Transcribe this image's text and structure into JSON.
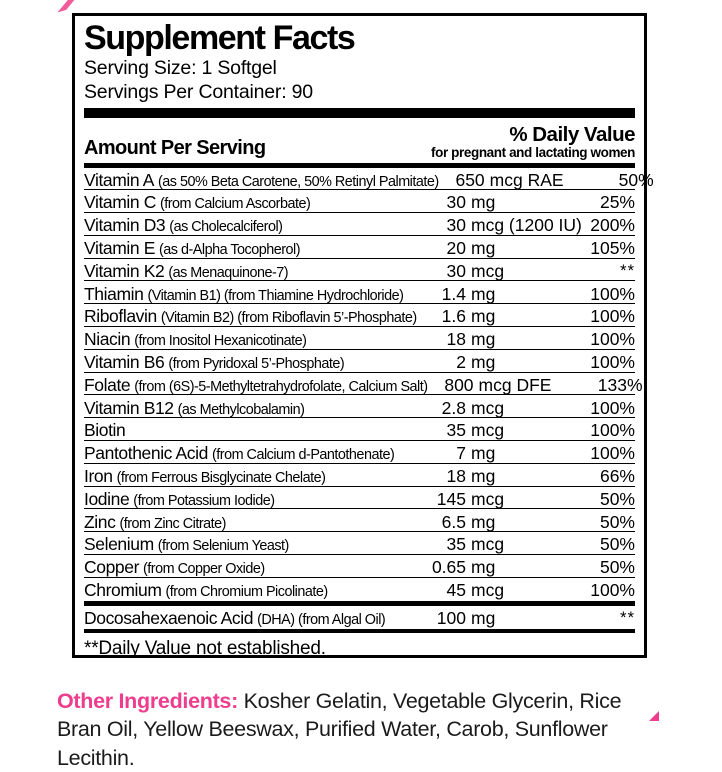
{
  "label": {
    "title": "Supplement Facts",
    "serving_size": "Serving Size: 1 Softgel",
    "servings_per_container": "Servings Per Container: 90",
    "amount_header": "Amount Per Serving",
    "dv_header": "% Daily Value",
    "dv_subheader": "for pregnant and lactating women",
    "rows": [
      {
        "name": "Vitamin A",
        "detail": "(as 50% Beta Carotene, 50% Retinyl Palmitate)",
        "num": "650",
        "unit": "mcg RAE",
        "dv": "50%"
      },
      {
        "name": "Vitamin C",
        "detail": "(from Calcium Ascorbate)",
        "num": "30",
        "unit": "mg",
        "dv": "25%"
      },
      {
        "name": "Vitamin D3",
        "detail": "(as Cholecalciferol)",
        "num": "30",
        "unit": "mcg (1200 IU)",
        "dv": "200%"
      },
      {
        "name": "Vitamin E",
        "detail": "(as d-Alpha Tocopherol)",
        "num": "20",
        "unit": "mg",
        "dv": "105%"
      },
      {
        "name": "Vitamin K2",
        "detail": "(as Menaquinone-7)",
        "num": "30",
        "unit": "mcg",
        "dv": "**"
      },
      {
        "name": "Thiamin",
        "detail": "(Vitamin B1) (from Thiamine Hydrochloride)",
        "num": "1.4",
        "unit": "mg",
        "dv": "100%"
      },
      {
        "name": "Riboflavin",
        "detail": "(Vitamin B2) (from Riboflavin 5’-Phosphate)",
        "num": "1.6",
        "unit": "mg",
        "dv": "100%"
      },
      {
        "name": "Niacin",
        "detail": "(from Inositol Hexanicotinate)",
        "num": "18",
        "unit": "mg",
        "dv": "100%"
      },
      {
        "name": "Vitamin B6",
        "detail": "(from Pyridoxal 5’-Phosphate)",
        "num": "2",
        "unit": "mg",
        "dv": "100%"
      },
      {
        "name": "Folate",
        "detail": "(from (6S)-5-Methyltetrahydrofolate, Calcium Salt)",
        "num": "800",
        "unit": "mcg DFE",
        "dv": "133%"
      },
      {
        "name": "Vitamin B12",
        "detail": "(as Methylcobalamin)",
        "num": "2.8",
        "unit": "mcg",
        "dv": "100%"
      },
      {
        "name": "Biotin",
        "detail": "",
        "num": "35",
        "unit": "mcg",
        "dv": "100%"
      },
      {
        "name": "Pantothenic Acid",
        "detail": "(from Calcium d-Pantothenate)",
        "num": "7",
        "unit": "mg",
        "dv": "100%"
      },
      {
        "name": "Iron",
        "detail": "(from Ferrous Bisglycinate Chelate)",
        "num": "18",
        "unit": "mg",
        "dv": "66%"
      },
      {
        "name": "Iodine",
        "detail": "(from Potassium Iodide)",
        "num": "145",
        "unit": "mcg",
        "dv": "50%"
      },
      {
        "name": "Zinc",
        "detail": "(from Zinc Citrate)",
        "num": "6.5",
        "unit": "mg",
        "dv": "50%"
      },
      {
        "name": "Selenium",
        "detail": "(from Selenium Yeast)",
        "num": "35",
        "unit": "mcg",
        "dv": "50%"
      },
      {
        "name": "Copper",
        "detail": "(from Copper Oxide)",
        "num": "0.65",
        "unit": "mg",
        "dv": "50%"
      },
      {
        "name": "Chromium",
        "detail": "(from Chromium Picolinate)",
        "num": "45",
        "unit": "mcg",
        "dv": "100%"
      }
    ],
    "dha": {
      "name": "Docosahexaenoic Acid",
      "detail": "(DHA) (from Algal Oil)",
      "num": "100",
      "unit": "mg",
      "dv": "**"
    },
    "footnote": "**Daily Value not established."
  },
  "other_ingredients": {
    "label": "Other Ingredients:",
    "text": " Kosher Gelatin, Vegetable Glycerin, Rice Bran Oil, Yellow Beeswax, Purified Water, Carob, Sunflower Lecithin."
  },
  "colors": {
    "accent_pink": "#ee3d8c",
    "text_black": "#000000"
  }
}
